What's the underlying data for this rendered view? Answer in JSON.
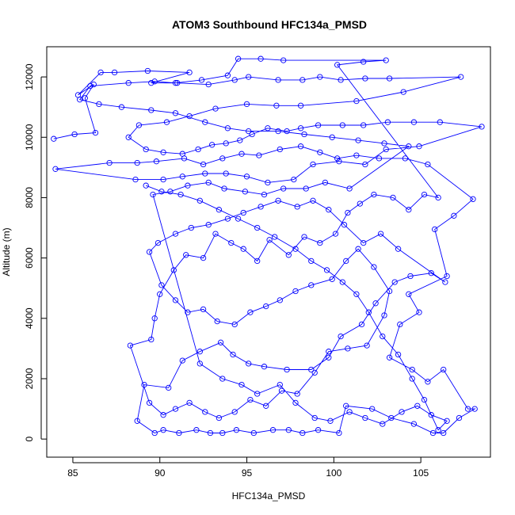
{
  "chart_data": {
    "type": "scatter",
    "title": "ATOM3 Southbound HFC134a_PMSD",
    "xlabel": "HFC134a_PMSD",
    "ylabel": "Altitude (m)",
    "xlim": [
      83.5,
      109
    ],
    "ylim": [
      -600,
      13000
    ],
    "xticks": [
      85,
      90,
      95,
      100,
      105
    ],
    "yticks": [
      0,
      2000,
      4000,
      6000,
      8000,
      10000,
      12000
    ],
    "grid": false,
    "marker": "open-circle",
    "connect_points": true,
    "series_color": "#0000ff",
    "points": [
      [
        83.9,
        9950
      ],
      [
        85.1,
        10100
      ],
      [
        86.3,
        10150
      ],
      [
        85.7,
        11300
      ],
      [
        86.2,
        11750
      ],
      [
        85.3,
        11400
      ],
      [
        86.6,
        12150
      ],
      [
        87.4,
        12150
      ],
      [
        89.3,
        12200
      ],
      [
        91.7,
        12150
      ],
      [
        89.5,
        11800
      ],
      [
        91.0,
        11800
      ],
      [
        92.8,
        11750
      ],
      [
        94.3,
        11900
      ],
      [
        95.1,
        12000
      ],
      [
        96.8,
        11900
      ],
      [
        98.2,
        11900
      ],
      [
        99.2,
        12000
      ],
      [
        100.4,
        11900
      ],
      [
        101.8,
        11950
      ],
      [
        103.2,
        11950
      ],
      [
        107.3,
        12000
      ],
      [
        104.0,
        11500
      ],
      [
        101.3,
        11200
      ],
      [
        98.1,
        11050
      ],
      [
        96.7,
        11050
      ],
      [
        95.0,
        11100
      ],
      [
        93.2,
        10950
      ],
      [
        91.7,
        10700
      ],
      [
        90.4,
        10500
      ],
      [
        88.8,
        10400
      ],
      [
        88.2,
        10000
      ],
      [
        89.2,
        9600
      ],
      [
        90.2,
        9500
      ],
      [
        91.3,
        9450
      ],
      [
        92.2,
        9600
      ],
      [
        93.0,
        9750
      ],
      [
        93.8,
        9800
      ],
      [
        94.6,
        9900
      ],
      [
        95.3,
        10100
      ],
      [
        96.2,
        10300
      ],
      [
        97.3,
        10200
      ],
      [
        98.1,
        10300
      ],
      [
        99.1,
        10400
      ],
      [
        100.5,
        10400
      ],
      [
        101.7,
        10400
      ],
      [
        103.1,
        10500
      ],
      [
        104.6,
        10500
      ],
      [
        106.1,
        10500
      ],
      [
        108.5,
        10350
      ],
      [
        104.9,
        9700
      ],
      [
        103.0,
        9600
      ],
      [
        101.8,
        9100
      ],
      [
        100.3,
        9200
      ],
      [
        98.8,
        9100
      ],
      [
        97.7,
        8600
      ],
      [
        96.2,
        8500
      ],
      [
        95.0,
        8700
      ],
      [
        93.8,
        8800
      ],
      [
        92.6,
        8800
      ],
      [
        91.3,
        8700
      ],
      [
        90.2,
        8600
      ],
      [
        88.6,
        8600
      ],
      [
        84.0,
        8950
      ],
      [
        87.1,
        9150
      ],
      [
        88.7,
        9150
      ],
      [
        89.8,
        9200
      ],
      [
        91.4,
        9300
      ],
      [
        92.5,
        9100
      ],
      [
        93.6,
        9300
      ],
      [
        94.7,
        9450
      ],
      [
        95.7,
        9400
      ],
      [
        96.9,
        9600
      ],
      [
        98.1,
        9700
      ],
      [
        99.2,
        9500
      ],
      [
        100.2,
        9300
      ],
      [
        101.3,
        9400
      ],
      [
        102.6,
        9300
      ],
      [
        104.1,
        9300
      ],
      [
        105.4,
        9100
      ],
      [
        108.0,
        7950
      ],
      [
        106.9,
        7400
      ],
      [
        105.8,
        6950
      ],
      [
        106.5,
        5400
      ],
      [
        104.3,
        4800
      ],
      [
        104.9,
        4200
      ],
      [
        103.8,
        3800
      ],
      [
        103.2,
        2700
      ],
      [
        104.5,
        2300
      ],
      [
        105.4,
        1900
      ],
      [
        106.3,
        2300
      ],
      [
        107.7,
        1000
      ],
      [
        108.1,
        1000
      ],
      [
        107.2,
        700
      ],
      [
        106.3,
        200
      ],
      [
        105.7,
        200
      ],
      [
        104.6,
        500
      ],
      [
        103.3,
        700
      ],
      [
        102.2,
        1000
      ],
      [
        100.7,
        1100
      ],
      [
        100.3,
        200
      ],
      [
        99.1,
        300
      ],
      [
        98.2,
        200
      ],
      [
        97.4,
        300
      ],
      [
        96.5,
        300
      ],
      [
        95.4,
        200
      ],
      [
        94.4,
        300
      ],
      [
        93.6,
        200
      ],
      [
        92.9,
        200
      ],
      [
        92.1,
        300
      ],
      [
        91.1,
        200
      ],
      [
        90.2,
        300
      ],
      [
        89.7,
        200
      ],
      [
        88.7,
        600
      ],
      [
        89.1,
        1800
      ],
      [
        90.5,
        1700
      ],
      [
        91.3,
        2600
      ],
      [
        92.3,
        2900
      ],
      [
        93.5,
        3200
      ],
      [
        94.2,
        2800
      ],
      [
        95.1,
        2500
      ],
      [
        96.0,
        2400
      ],
      [
        97.3,
        2300
      ],
      [
        98.7,
        2300
      ],
      [
        99.7,
        2700
      ],
      [
        100.4,
        3400
      ],
      [
        101.6,
        3800
      ],
      [
        102.4,
        4500
      ],
      [
        103.5,
        5200
      ],
      [
        104.4,
        5400
      ],
      [
        105.6,
        5500
      ],
      [
        106.4,
        5200
      ],
      [
        103.7,
        6300
      ],
      [
        102.7,
        6800
      ],
      [
        101.7,
        6500
      ],
      [
        100.6,
        7100
      ],
      [
        99.7,
        7600
      ],
      [
        98.8,
        7900
      ],
      [
        97.9,
        7700
      ],
      [
        96.8,
        7900
      ],
      [
        95.8,
        7700
      ],
      [
        94.8,
        7500
      ],
      [
        93.9,
        7300
      ],
      [
        92.8,
        7100
      ],
      [
        91.8,
        7000
      ],
      [
        90.9,
        6800
      ],
      [
        89.9,
        6500
      ],
      [
        89.4,
        6200
      ],
      [
        90.1,
        5100
      ],
      [
        90.9,
        4600
      ],
      [
        91.6,
        4200
      ],
      [
        92.5,
        4300
      ],
      [
        93.3,
        3900
      ],
      [
        94.3,
        3800
      ],
      [
        95.2,
        4200
      ],
      [
        96.1,
        4400
      ],
      [
        96.9,
        4600
      ],
      [
        97.8,
        4900
      ],
      [
        98.7,
        5100
      ],
      [
        99.9,
        5300
      ],
      [
        100.7,
        5900
      ],
      [
        101.4,
        6300
      ],
      [
        102.3,
        5700
      ],
      [
        103.2,
        4900
      ],
      [
        102.9,
        4100
      ],
      [
        101.9,
        3100
      ],
      [
        100.8,
        3000
      ],
      [
        99.7,
        2900
      ],
      [
        98.9,
        2200
      ],
      [
        97.9,
        1500
      ],
      [
        97.0,
        1600
      ],
      [
        96.1,
        1100
      ],
      [
        95.2,
        1300
      ],
      [
        94.3,
        900
      ],
      [
        93.4,
        700
      ],
      [
        92.6,
        900
      ],
      [
        91.7,
        1200
      ],
      [
        90.9,
        1000
      ],
      [
        90.2,
        800
      ],
      [
        89.4,
        1200
      ],
      [
        88.3,
        3100
      ],
      [
        89.5,
        3300
      ],
      [
        89.7,
        4000
      ],
      [
        90.0,
        4800
      ],
      [
        90.8,
        5600
      ],
      [
        91.5,
        6100
      ],
      [
        92.5,
        6000
      ],
      [
        93.2,
        6800
      ],
      [
        94.1,
        6500
      ],
      [
        94.8,
        6300
      ],
      [
        95.6,
        5900
      ],
      [
        96.3,
        6600
      ],
      [
        97.4,
        6100
      ],
      [
        98.3,
        6700
      ],
      [
        99.2,
        6500
      ],
      [
        100.1,
        6800
      ],
      [
        100.8,
        7500
      ],
      [
        101.5,
        7800
      ],
      [
        102.3,
        8100
      ],
      [
        103.4,
        8000
      ],
      [
        104.3,
        7600
      ],
      [
        105.2,
        8100
      ],
      [
        106.0,
        8000
      ],
      [
        100.2,
        12400
      ],
      [
        101.7,
        12500
      ],
      [
        103.0,
        12550
      ],
      [
        97.1,
        12550
      ],
      [
        95.8,
        12600
      ],
      [
        94.5,
        12600
      ],
      [
        93.9,
        12050
      ],
      [
        92.4,
        11900
      ],
      [
        90.9,
        11800
      ],
      [
        89.7,
        11850
      ],
      [
        88.2,
        11800
      ],
      [
        86.0,
        11700
      ],
      [
        85.4,
        11250
      ],
      [
        86.5,
        11100
      ],
      [
        87.8,
        11000
      ],
      [
        89.5,
        10900
      ],
      [
        90.9,
        10800
      ],
      [
        92.6,
        10500
      ],
      [
        93.9,
        10300
      ],
      [
        95.1,
        10200
      ],
      [
        96.8,
        10200
      ],
      [
        98.3,
        10100
      ],
      [
        99.9,
        10000
      ],
      [
        101.4,
        9900
      ],
      [
        102.9,
        9800
      ],
      [
        104.3,
        9700
      ],
      [
        100.9,
        8300
      ],
      [
        99.5,
        8500
      ],
      [
        98.4,
        8300
      ],
      [
        97.1,
        8300
      ],
      [
        96.0,
        8100
      ],
      [
        94.9,
        8200
      ],
      [
        93.7,
        8300
      ],
      [
        92.8,
        8500
      ],
      [
        91.6,
        8400
      ],
      [
        90.6,
        8200
      ],
      [
        89.6,
        8100
      ],
      [
        92.3,
        2500
      ],
      [
        93.6,
        2000
      ],
      [
        94.7,
        1800
      ],
      [
        95.6,
        1500
      ],
      [
        96.9,
        1800
      ],
      [
        97.8,
        1200
      ],
      [
        98.9,
        700
      ],
      [
        99.8,
        600
      ],
      [
        100.9,
        900
      ],
      [
        101.8,
        700
      ],
      [
        102.8,
        500
      ],
      [
        103.9,
        900
      ],
      [
        104.8,
        1100
      ],
      [
        105.6,
        800
      ],
      [
        106.5,
        600
      ],
      [
        106.0,
        300
      ],
      [
        105.2,
        1300
      ],
      [
        104.5,
        2000
      ],
      [
        103.7,
        2800
      ],
      [
        102.8,
        3400
      ],
      [
        102.0,
        4200
      ],
      [
        101.3,
        4800
      ],
      [
        100.5,
        5200
      ],
      [
        99.6,
        5600
      ],
      [
        98.7,
        5900
      ],
      [
        97.8,
        6300
      ],
      [
        96.6,
        6700
      ],
      [
        95.6,
        7000
      ],
      [
        94.5,
        7300
      ],
      [
        93.4,
        7600
      ],
      [
        92.3,
        7900
      ],
      [
        91.2,
        8100
      ],
      [
        90.1,
        8200
      ],
      [
        89.2,
        8400
      ]
    ]
  }
}
